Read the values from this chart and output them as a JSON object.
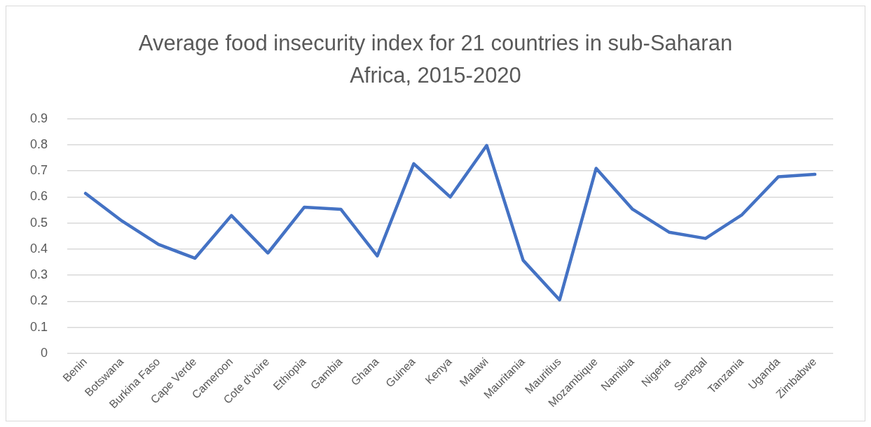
{
  "chart_data": {
    "type": "line",
    "title": "Average food insecurity index for 21 countries in sub-Saharan Africa, 2015-2020",
    "categories": [
      "Benin",
      "Botswana",
      "Burkina Faso",
      "Cape Verde",
      "Cameroon",
      "Cote d'voire",
      "Ethiopia",
      "Gambia",
      "Ghana",
      "Guinea",
      "Kenya",
      "Malawi",
      "Mauritania",
      "Mauritius",
      "Mozambique",
      "Namibia",
      "Nigeria",
      "Senegal",
      "Tanzania",
      "Uganda",
      "Zimbabwe"
    ],
    "series": [
      {
        "color": "#4472c4",
        "values": [
          0.614,
          0.508,
          0.418,
          0.365,
          0.529,
          0.385,
          0.561,
          0.553,
          0.374,
          0.728,
          0.6,
          0.798,
          0.357,
          0.205,
          0.71,
          0.553,
          0.465,
          0.441,
          0.532,
          0.678,
          0.687
        ]
      }
    ],
    "ylim": [
      0,
      0.9
    ],
    "yticks": [
      0,
      0.1,
      0.2,
      0.3,
      0.4,
      0.5,
      0.6,
      0.7,
      0.8,
      0.9
    ],
    "grid": "y",
    "legend": false,
    "marker": "none",
    "line_style": "solid"
  }
}
